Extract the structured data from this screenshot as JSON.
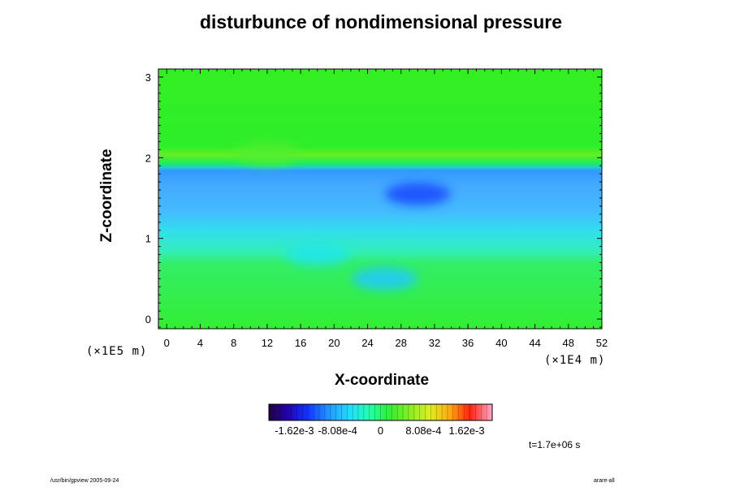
{
  "chart_data": {
    "type": "heatmap",
    "title": "disturbunce of nondimensional pressure",
    "xlabel": "X-coordinate",
    "ylabel": "Z-coordinate",
    "x_scale_label": "(×1E4 m)",
    "y_scale_label": "(×1E5 m)",
    "x_ticks": [
      "0",
      "4",
      "8",
      "12",
      "16",
      "20",
      "24",
      "28",
      "32",
      "36",
      "40",
      "44",
      "48",
      "52"
    ],
    "y_ticks": [
      "0",
      "1",
      "2",
      "3"
    ],
    "xlim": [
      -1,
      52
    ],
    "ylim": [
      -0.12,
      3.1
    ],
    "colorbar": {
      "tick_labels": [
        "-1.62e-3",
        "-8.08e-4",
        "0",
        "8.08e-4",
        "1.62e-3"
      ],
      "tick_values": [
        -0.00162,
        -0.000808,
        0,
        0.000808,
        0.00162
      ],
      "range": [
        -0.0021,
        0.0021
      ]
    },
    "field_bands": [
      {
        "z_range": [
          1.9,
          3.1
        ],
        "value": 0.0
      },
      {
        "z_range": [
          1.2,
          1.9
        ],
        "value": -0.0009
      },
      {
        "z_range": [
          1.0,
          1.2
        ],
        "value": -0.0006
      },
      {
        "z_range": [
          0.75,
          1.0
        ],
        "value": -0.00025
      },
      {
        "z_range": [
          -0.12,
          0.75
        ],
        "value": 0.0
      }
    ],
    "local_features": [
      {
        "x": 30,
        "z": 1.55,
        "value": -0.0013
      },
      {
        "x": 26,
        "z": 0.5,
        "value": -0.0007
      },
      {
        "x": 18,
        "z": 0.8,
        "value": -0.0005
      },
      {
        "x": 12,
        "z": 2.05,
        "value": 0.0003
      }
    ],
    "time_label": "t=1.7e+06 s"
  },
  "footer": {
    "left": "/usr/bin/gpview 2005-09-24",
    "right": "arare-all"
  },
  "colors": {
    "plot_background": "#22ee22",
    "frame": "#000000"
  }
}
